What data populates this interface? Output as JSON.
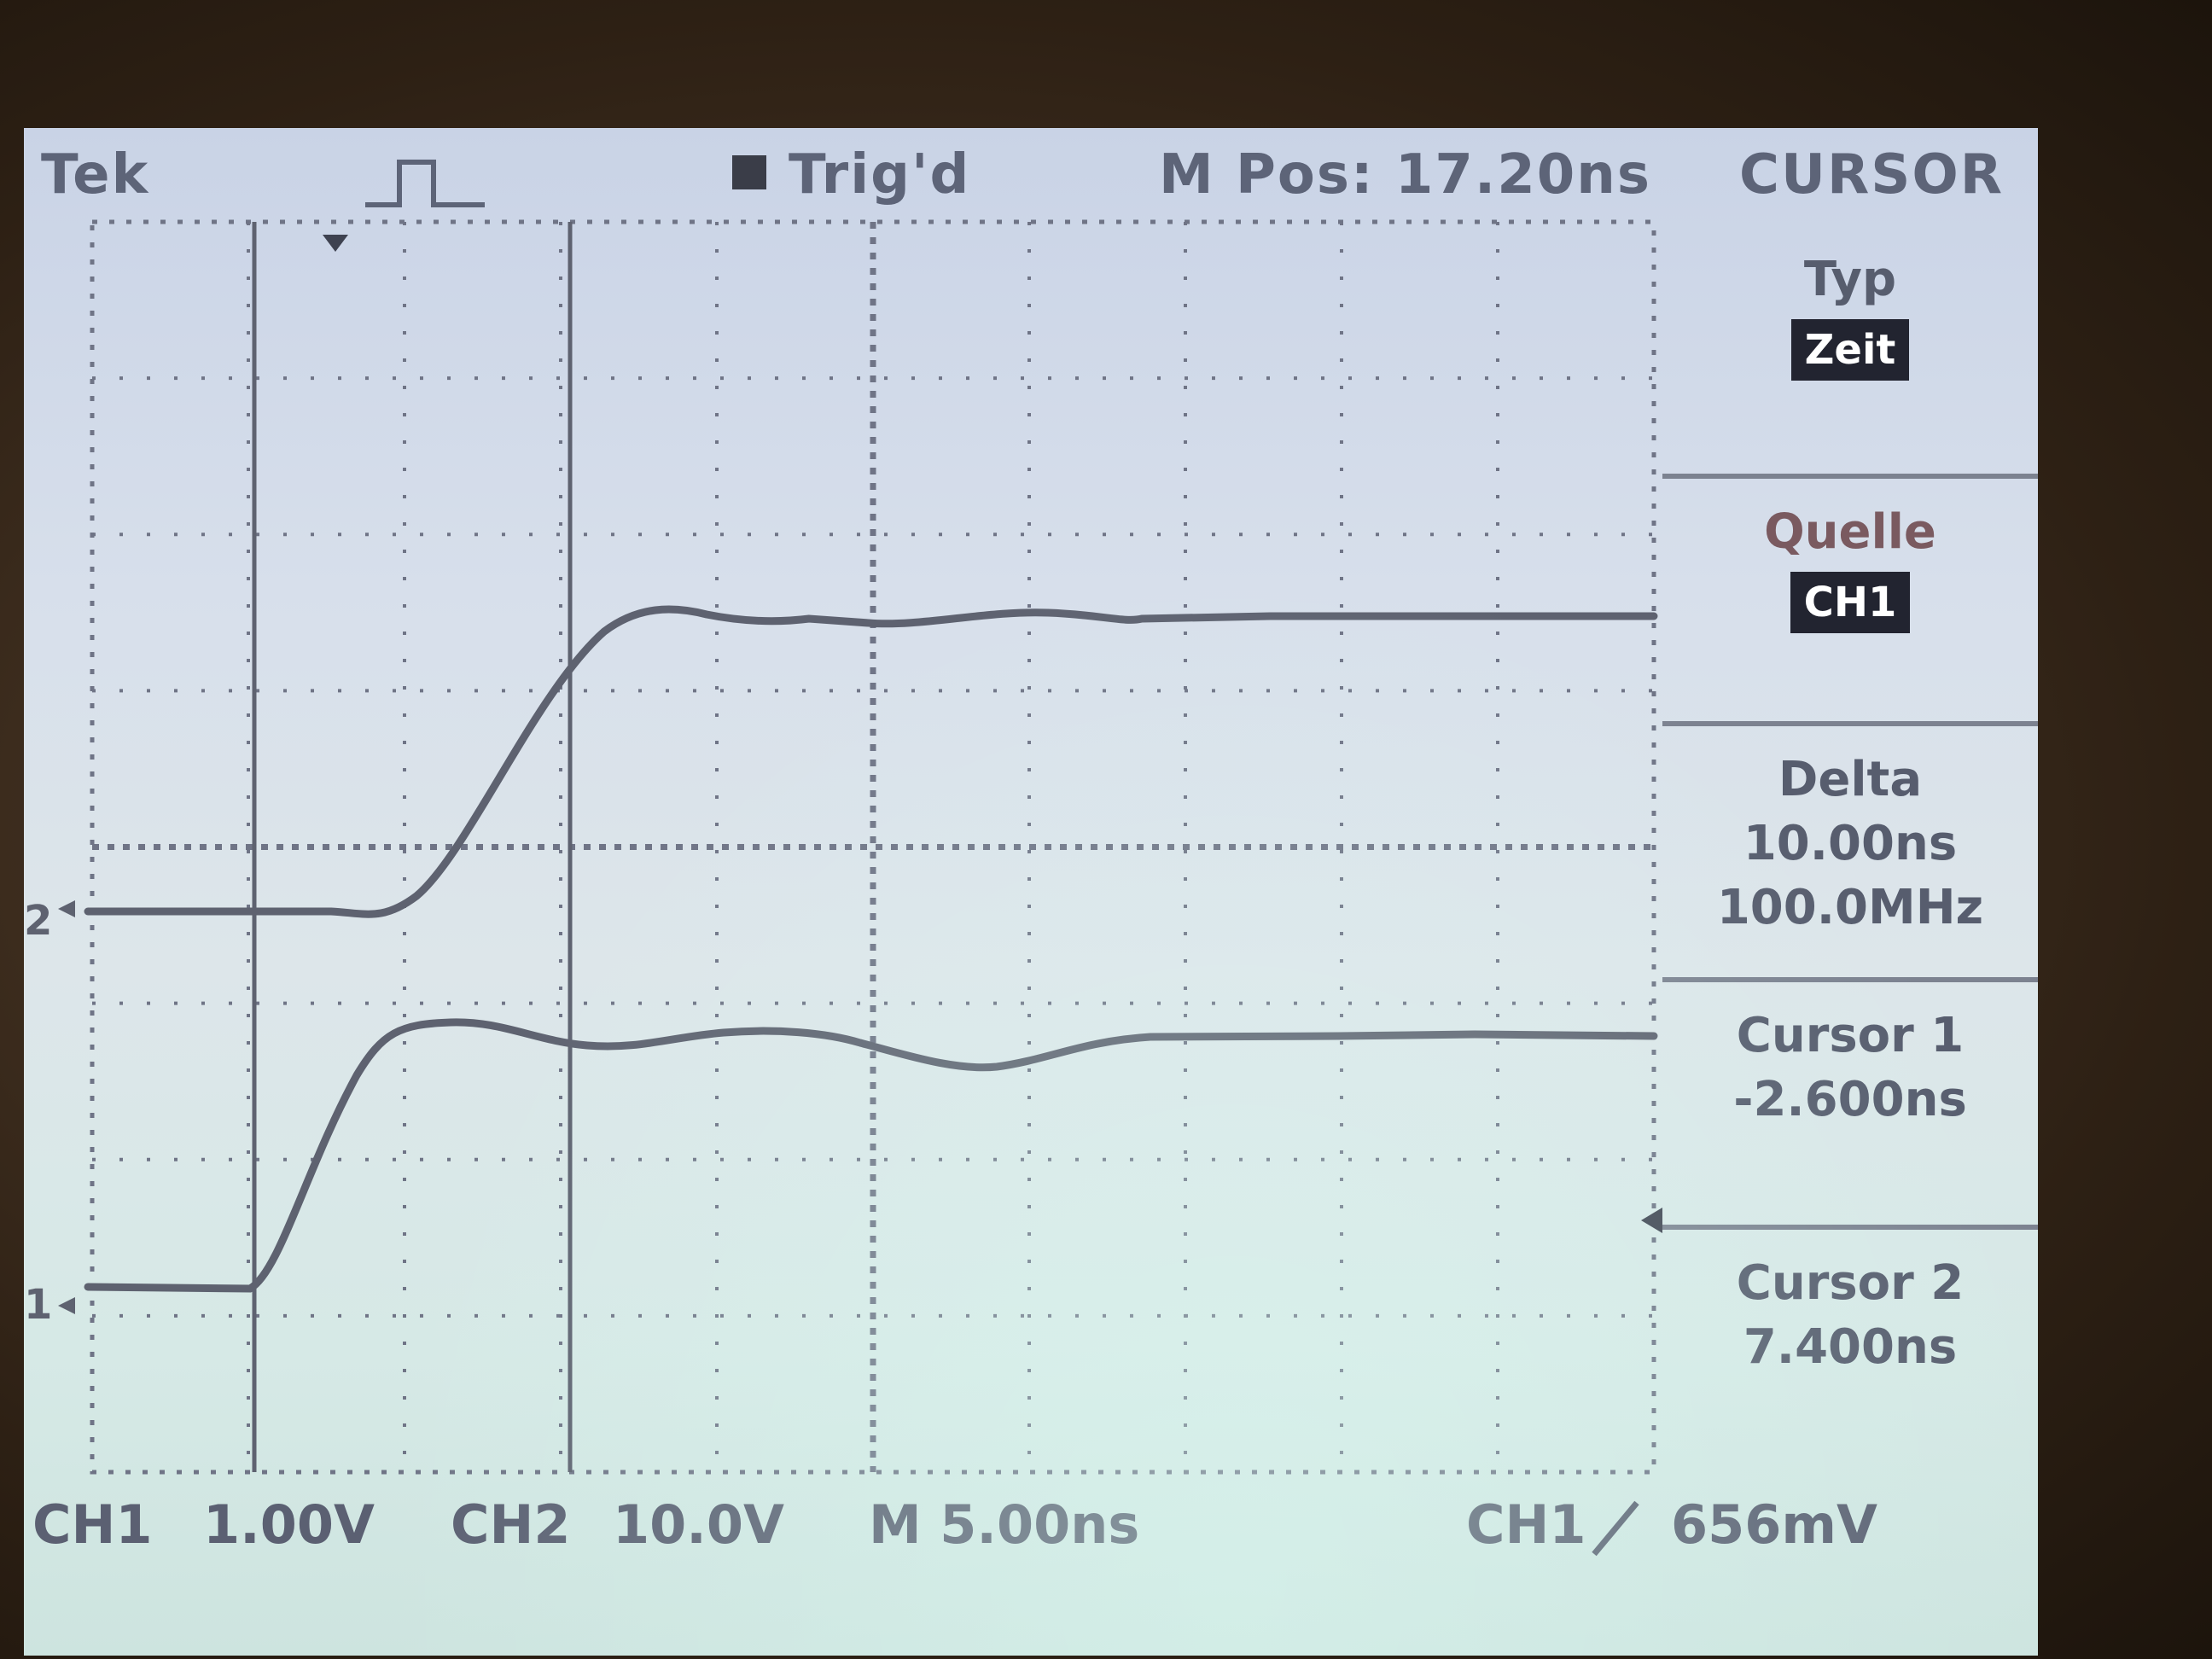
{
  "header": {
    "brand": "Tek",
    "trigger_state": "Trig'd",
    "main_position": "M Pos: 17.20ns",
    "menu_title": "CURSOR"
  },
  "cursor_menu": {
    "type_label": "Typ",
    "type_value": "Zeit",
    "source_label": "Quelle",
    "source_value": "CH1",
    "delta_label": "Delta",
    "delta_time": "10.00ns",
    "delta_freq": "100.0MHz",
    "cursor1_label": "Cursor 1",
    "cursor1_value": "-2.600ns",
    "cursor2_label": "Cursor 2",
    "cursor2_value": "7.400ns"
  },
  "footer": {
    "ch1_label": "CH1",
    "ch1_scale": "1.00V",
    "ch2_label": "CH2",
    "ch2_scale": "10.0V",
    "time_scale": "M 5.00ns",
    "trigger_source": "CH1",
    "trigger_level": "656mV"
  },
  "markers": {
    "ch1": "1",
    "ch2": "2"
  },
  "colors": {
    "trace": "#5e6270",
    "grid": "#6f7486",
    "text": "#575d6e"
  }
}
